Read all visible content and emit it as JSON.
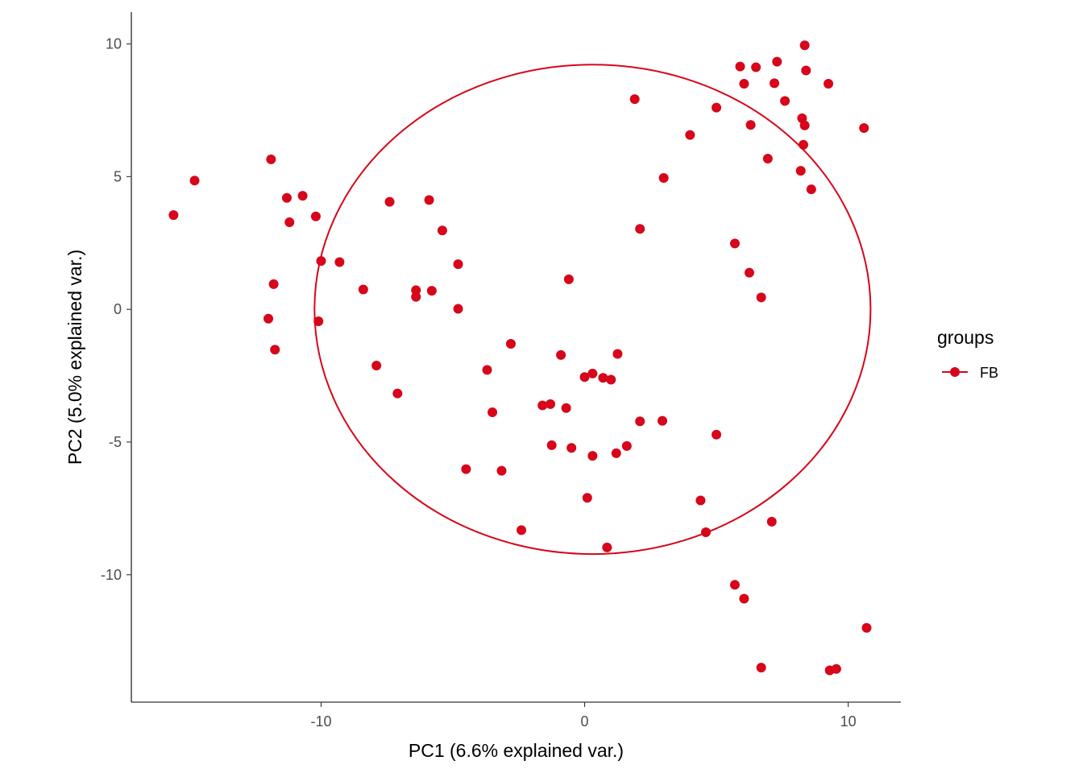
{
  "chart_data": {
    "type": "scatter",
    "title": "",
    "xlabel": "PC1 (6.6% explained var.)",
    "ylabel": "PC2 (5.0% explained var.)",
    "xlim": [
      -17.2,
      12.0
    ],
    "ylim": [
      -14.8,
      11.2
    ],
    "xticks": [
      -10,
      0,
      10
    ],
    "yticks": [
      -10,
      -5,
      0,
      5,
      10
    ],
    "grid": false,
    "color": "#d7061a",
    "legend": {
      "title": "groups",
      "placement": "right",
      "entries": [
        "FB"
      ]
    },
    "ellipse": {
      "group": "FB",
      "cx": 0.3,
      "cy": 0.0,
      "rx": 10.55,
      "ry": 9.22
    },
    "series": [
      {
        "name": "FB",
        "points": [
          [
            -15.6,
            3.55
          ],
          [
            -14.8,
            4.85
          ],
          [
            -11.9,
            5.65
          ],
          [
            -11.3,
            4.2
          ],
          [
            -10.7,
            4.28
          ],
          [
            -11.2,
            3.28
          ],
          [
            -10.2,
            3.5
          ],
          [
            -10.0,
            1.82
          ],
          [
            -9.3,
            1.78
          ],
          [
            -11.8,
            0.95
          ],
          [
            -12.0,
            -0.35
          ],
          [
            -10.1,
            -0.45
          ],
          [
            -11.75,
            -1.52
          ],
          [
            -8.4,
            0.75
          ],
          [
            -7.4,
            4.05
          ],
          [
            -5.9,
            4.12
          ],
          [
            -5.4,
            2.97
          ],
          [
            -4.8,
            1.7
          ],
          [
            -6.4,
            0.72
          ],
          [
            -6.4,
            0.47
          ],
          [
            -5.8,
            0.7
          ],
          [
            -4.8,
            0.02
          ],
          [
            -7.9,
            -2.12
          ],
          [
            -7.1,
            -3.17
          ],
          [
            -2.8,
            -1.3
          ],
          [
            -3.7,
            -2.28
          ],
          [
            -3.5,
            -3.88
          ],
          [
            -1.6,
            -3.62
          ],
          [
            -1.3,
            -3.57
          ],
          [
            -0.7,
            -3.72
          ],
          [
            -0.9,
            -1.72
          ],
          [
            -0.6,
            1.13
          ],
          [
            0.0,
            -2.55
          ],
          [
            0.3,
            -2.42
          ],
          [
            0.7,
            -2.58
          ],
          [
            1.0,
            -2.65
          ],
          [
            1.25,
            -1.68
          ],
          [
            -1.25,
            -5.12
          ],
          [
            -0.5,
            -5.22
          ],
          [
            0.3,
            -5.52
          ],
          [
            1.2,
            -5.42
          ],
          [
            1.6,
            -5.15
          ],
          [
            2.1,
            -4.22
          ],
          [
            2.95,
            -4.2
          ],
          [
            -4.5,
            -6.02
          ],
          [
            -3.15,
            -6.08
          ],
          [
            0.1,
            -7.1
          ],
          [
            -2.4,
            -8.32
          ],
          [
            0.85,
            -8.97
          ],
          [
            1.9,
            7.92
          ],
          [
            2.1,
            3.03
          ],
          [
            3.0,
            4.95
          ],
          [
            4.0,
            6.57
          ],
          [
            5.0,
            7.6
          ],
          [
            5.7,
            2.48
          ],
          [
            6.25,
            1.38
          ],
          [
            6.7,
            0.45
          ],
          [
            5.0,
            -4.72
          ],
          [
            4.4,
            -7.2
          ],
          [
            4.6,
            -8.4
          ],
          [
            7.1,
            -8.0
          ],
          [
            5.7,
            -10.38
          ],
          [
            6.05,
            -10.9
          ],
          [
            6.7,
            -13.5
          ],
          [
            5.9,
            9.15
          ],
          [
            6.05,
            8.5
          ],
          [
            6.5,
            9.12
          ],
          [
            7.3,
            9.33
          ],
          [
            7.2,
            8.52
          ],
          [
            7.6,
            7.85
          ],
          [
            6.3,
            6.95
          ],
          [
            6.95,
            5.68
          ],
          [
            8.35,
            9.95
          ],
          [
            8.4,
            9.0
          ],
          [
            9.25,
            8.5
          ],
          [
            8.25,
            7.2
          ],
          [
            8.35,
            6.93
          ],
          [
            8.3,
            6.2
          ],
          [
            8.2,
            5.22
          ],
          [
            8.6,
            4.52
          ],
          [
            10.6,
            6.83
          ],
          [
            10.7,
            -12.0
          ],
          [
            9.3,
            -13.6
          ],
          [
            9.55,
            -13.55
          ]
        ]
      }
    ]
  }
}
